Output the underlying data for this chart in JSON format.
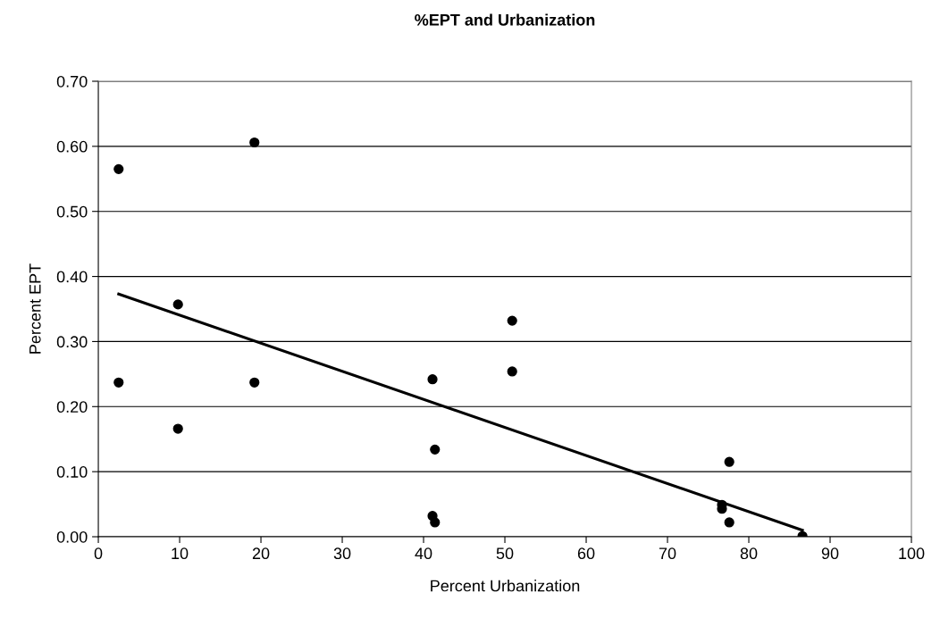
{
  "chart_data": {
    "type": "scatter",
    "title": "%EPT and Urbanization",
    "xlabel": "Percent Urbanization",
    "ylabel": "Percent EPT",
    "xlim": [
      0,
      100
    ],
    "xticks": [
      0,
      10,
      20,
      30,
      40,
      50,
      60,
      70,
      80,
      90,
      100
    ],
    "ylim": [
      0,
      0.7
    ],
    "yticks": [
      {
        "value": 0,
        "label": "0.00"
      },
      {
        "value": 0.1,
        "label": "0.10"
      },
      {
        "value": 0.2,
        "label": "0.20"
      },
      {
        "value": 0.3,
        "label": "0.30"
      },
      {
        "value": 0.4,
        "label": "0.40"
      },
      {
        "value": 0.5,
        "label": "0.50"
      },
      {
        "value": 0.6,
        "label": "0.60"
      },
      {
        "value": 0.7,
        "label": "0.70"
      }
    ],
    "grid": "y",
    "series": [
      {
        "marker": "circle",
        "color": "#000000",
        "x": [
          2.5,
          2.5,
          9.8,
          9.8,
          19.2,
          19.2,
          41.1,
          41.4,
          41.1,
          41.4,
          50.9,
          50.9,
          76.7,
          76.7,
          77.6,
          77.6,
          86.6
        ],
        "values": [
          0.565,
          0.237,
          0.357,
          0.166,
          0.606,
          0.237,
          0.242,
          0.134,
          0.032,
          0.022,
          0.332,
          0.254,
          0.049,
          0.043,
          0.115,
          0.022,
          0.001
        ]
      },
      {
        "type": "line",
        "color": "#000000",
        "x": [
          2.5,
          86.6
        ],
        "values": [
          0.373,
          0.01
        ]
      }
    ]
  }
}
